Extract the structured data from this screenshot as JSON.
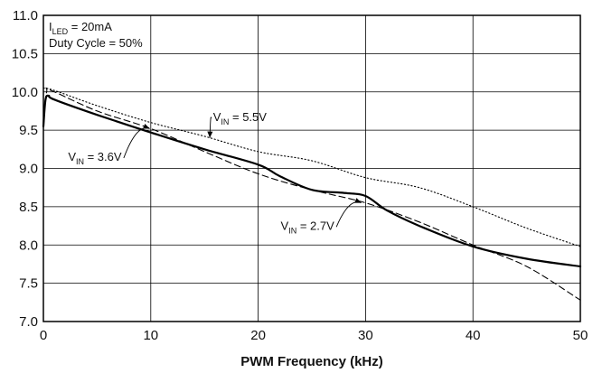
{
  "chart_data": {
    "type": "line",
    "title": "",
    "xlabel": "PWM Frequency (kHz)",
    "ylabel": "",
    "xlim": [
      0,
      50
    ],
    "ylim": [
      7.0,
      11.0
    ],
    "x_ticks": [
      0,
      10,
      20,
      30,
      40,
      50
    ],
    "x_tick_labels": [
      "0",
      "10",
      "20",
      "30",
      "40",
      "50"
    ],
    "y_ticks": [
      7.0,
      7.5,
      8.0,
      8.5,
      9.0,
      9.5,
      10.0,
      10.5,
      11.0
    ],
    "y_tick_labels": [
      "7.0",
      "7.5",
      "8.0",
      "8.5",
      "9.0",
      "9.5",
      "10.0",
      "10.5",
      "11.0"
    ],
    "grid": true,
    "conditions": [
      {
        "main": "I",
        "sub": "LED",
        "rest": " = 20mA"
      },
      {
        "main": "Duty Cycle = 50%",
        "sub": "",
        "rest": ""
      }
    ],
    "series": [
      {
        "name": "V_IN = 3.6V",
        "style": "solid",
        "color": "#000000",
        "x": [
          0,
          0.2,
          0.5,
          1,
          5,
          10,
          15,
          20,
          22,
          25,
          28,
          30,
          32,
          35,
          40,
          45,
          50
        ],
        "y": [
          9.55,
          9.9,
          9.95,
          9.9,
          9.7,
          9.47,
          9.25,
          9.05,
          8.9,
          8.72,
          8.68,
          8.64,
          8.45,
          8.25,
          7.98,
          7.82,
          7.72
        ]
      },
      {
        "name": "V_IN = 2.7V",
        "style": "dashed",
        "color": "#000000",
        "x": [
          0,
          0.3,
          0.7,
          5,
          10,
          15,
          20,
          25,
          30,
          35,
          40,
          45,
          50
        ],
        "y": [
          9.6,
          10.0,
          10.02,
          9.75,
          9.52,
          9.22,
          8.93,
          8.72,
          8.55,
          8.3,
          8.0,
          7.72,
          7.28
        ]
      },
      {
        "name": "V_IN = 5.5V",
        "style": "dotted",
        "color": "#000000",
        "x": [
          0,
          1,
          5,
          10,
          15,
          20,
          25,
          30,
          35,
          40,
          45,
          50
        ],
        "y": [
          10.05,
          10.02,
          9.82,
          9.6,
          9.42,
          9.22,
          9.1,
          8.88,
          8.75,
          8.5,
          8.22,
          7.98
        ]
      }
    ],
    "annotations": [
      {
        "main": "V",
        "sub": "IN",
        "rest": " = 5.5V",
        "label_x": 15.8,
        "label_y": 9.62,
        "arrow_to_x": 15.5,
        "arrow_to_y": 9.4
      },
      {
        "main": "V",
        "sub": "IN",
        "rest": " = 3.6V",
        "label_x": 2.3,
        "label_y": 9.1,
        "arrow_to_x": 9.9,
        "arrow_to_y": 9.52
      },
      {
        "main": "V",
        "sub": "IN",
        "rest": " = 2.7V",
        "label_x": 22.1,
        "label_y": 8.2,
        "arrow_to_x": 29.6,
        "arrow_to_y": 8.55
      }
    ]
  }
}
